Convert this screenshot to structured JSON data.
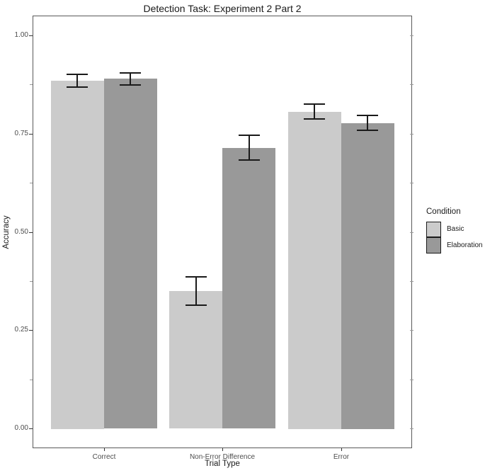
{
  "chart_data": {
    "type": "bar",
    "title": "Detection Task: Experiment 2 Part 2",
    "xlabel": "Trial Type",
    "ylabel": "Accuracy",
    "categories": [
      "Correct",
      "Non-Error Difference",
      "Error"
    ],
    "series": [
      {
        "name": "Basic",
        "color": "#cbcbcb",
        "values": [
          0.885,
          0.35,
          0.806
        ],
        "error_low": [
          0.868,
          0.314,
          0.788
        ],
        "error_high": [
          0.901,
          0.386,
          0.825
        ]
      },
      {
        "name": "Elaboration",
        "color": "#999999",
        "values": [
          0.89,
          0.713,
          0.777
        ],
        "error_low": [
          0.874,
          0.682,
          0.759
        ],
        "error_high": [
          0.905,
          0.745,
          0.796
        ]
      }
    ],
    "ylim": [
      0,
      1.0
    ],
    "yticks": [
      0,
      0.25,
      0.5,
      0.75,
      1.0
    ],
    "ytick_labels": [
      "0.00",
      "0.25",
      "0.50",
      "0.75",
      "1.00"
    ],
    "minor_ytick_step": 0.125,
    "grid": false,
    "legend_title": "Condition",
    "legend_position": "right",
    "error_bar_color": "#1a1a1a",
    "bar_orientation": "vertical"
  }
}
